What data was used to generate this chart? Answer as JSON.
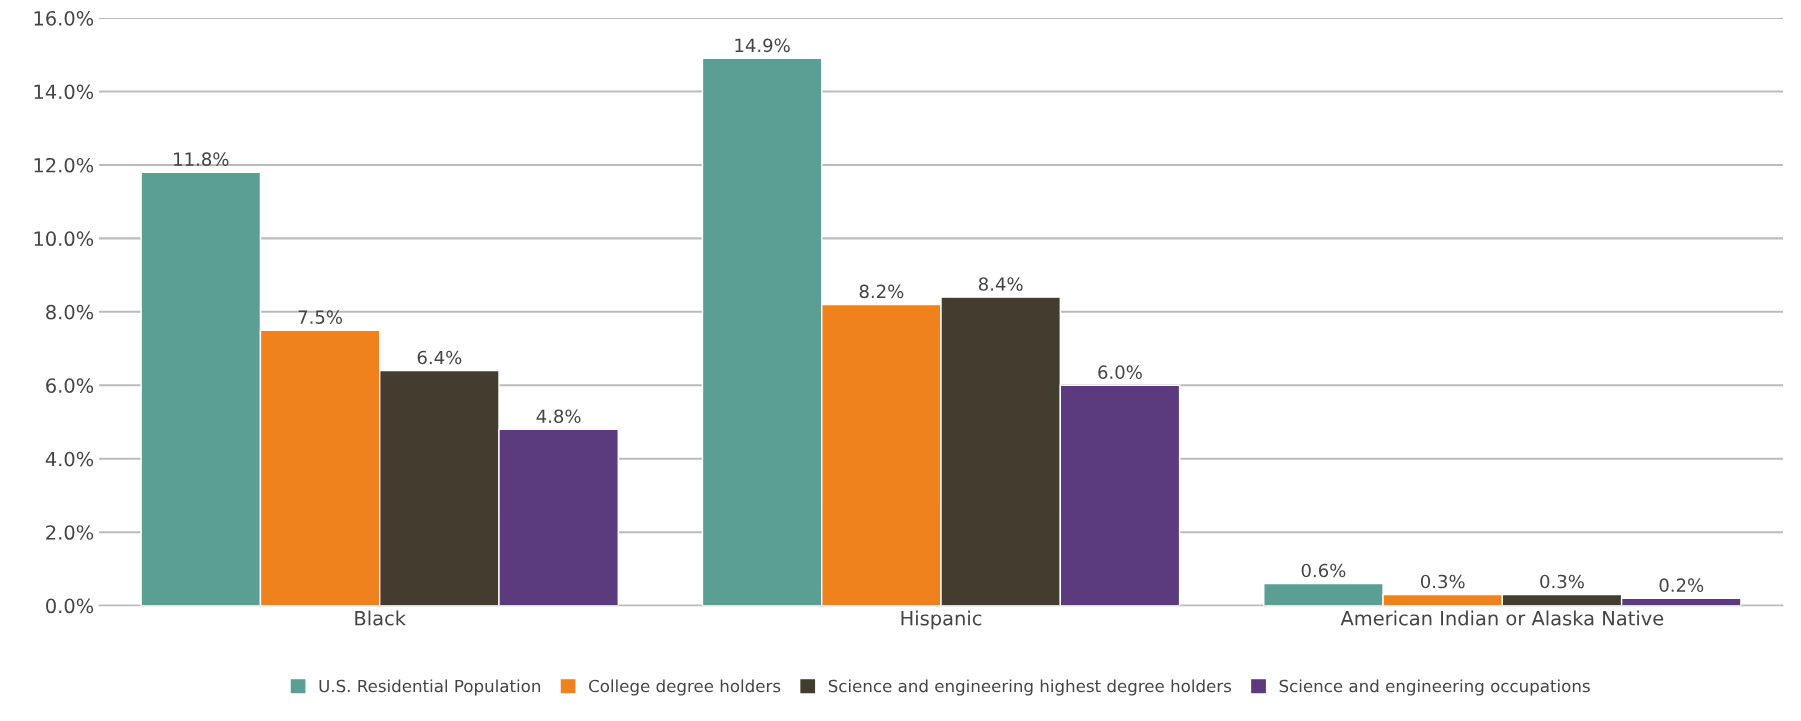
{
  "chart_data": {
    "type": "bar",
    "categories": [
      "Black",
      "Hispanic",
      "American Indian or Alaska Native"
    ],
    "series": [
      {
        "name": "U.S. Residential Population",
        "color": "#5b9e94",
        "values": [
          11.8,
          14.9,
          0.6
        ],
        "value_labels": [
          "11.8%",
          "14.9%",
          "0.6%"
        ]
      },
      {
        "name": "College degree holders",
        "color": "#f0821e",
        "values": [
          7.5,
          8.2,
          0.3
        ],
        "value_labels": [
          "7.5%",
          "8.2%",
          "0.3%"
        ]
      },
      {
        "name": "Science and engineering highest degree holders",
        "color": "#433d2f",
        "values": [
          6.4,
          8.4,
          0.3
        ],
        "value_labels": [
          "6.4%",
          "8.4%",
          "0.3%"
        ]
      },
      {
        "name": "Science and engineering occupations",
        "color": "#5b3a7e",
        "values": [
          4.8,
          6.0,
          0.2
        ],
        "value_labels": [
          "4.8%",
          "6.0%",
          "0.2%"
        ]
      }
    ],
    "ylim": [
      0,
      16
    ],
    "yticks": [
      {
        "value": 0,
        "label": "0.0%"
      },
      {
        "value": 2,
        "label": "2.0%"
      },
      {
        "value": 4,
        "label": "4.0%"
      },
      {
        "value": 6,
        "label": "6.0%"
      },
      {
        "value": 8,
        "label": "8.0%"
      },
      {
        "value": 10,
        "label": "10.0%"
      },
      {
        "value": 12,
        "label": "12.0%"
      },
      {
        "value": 14,
        "label": "14.0%"
      },
      {
        "value": 16,
        "label": "16.0%"
      }
    ],
    "grid": "y",
    "legend": "bottom"
  }
}
